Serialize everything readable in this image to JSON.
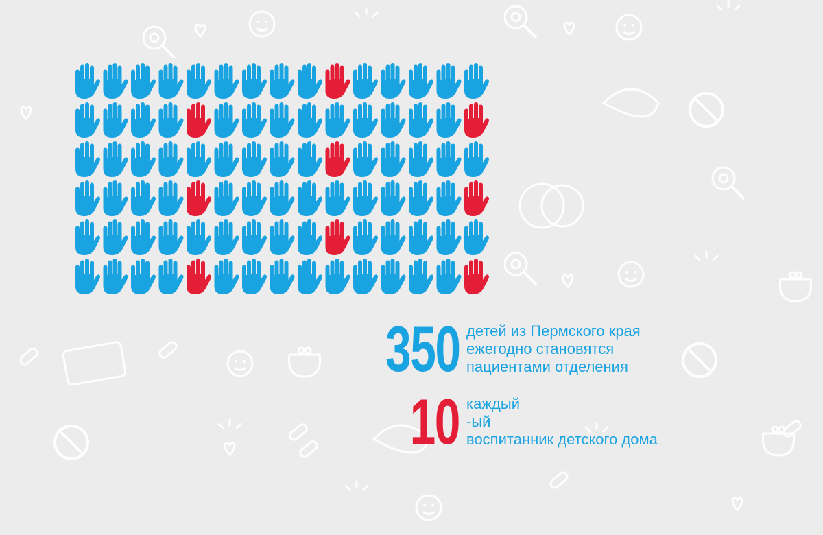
{
  "colors": {
    "background": "#ececec",
    "doodle": "#ffffff",
    "blue": "#1aa3e1",
    "red": "#e31e36"
  },
  "hands_grid": {
    "rows": 6,
    "cols": 15,
    "total_hands": 90,
    "red_hands": [
      [
        0,
        9
      ],
      [
        1,
        4
      ],
      [
        1,
        14
      ],
      [
        2,
        9
      ],
      [
        3,
        4
      ],
      [
        3,
        14
      ],
      [
        4,
        9
      ],
      [
        5,
        4
      ],
      [
        5,
        14
      ]
    ],
    "icon": "raised-hand-icon"
  },
  "stat_children": {
    "number": "350",
    "lines": [
      "детей из Пермского края",
      "ежегодно становятся",
      "пациентами отделения"
    ],
    "color": "#1aa3e1"
  },
  "stat_orphans": {
    "number": "10",
    "lines": [
      "каждый",
      "-ый",
      "воспитанник детского дома"
    ],
    "color": "#e31e36"
  }
}
